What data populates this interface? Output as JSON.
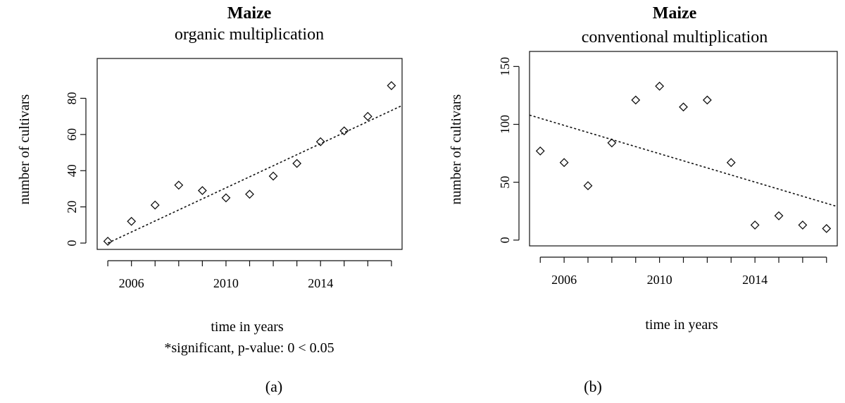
{
  "chart_data": [
    {
      "type": "scatter",
      "title": "Maize",
      "subtitle": "organic multiplication",
      "xlabel": "time in years",
      "ylabel": "number of cultivars",
      "note": "*significant, p-value:  0  < 0.05",
      "caption": "(a)",
      "xlim": [
        2004.55,
        2017.45
      ],
      "ylim": [
        -3.5,
        102
      ],
      "xticks": [
        "2006",
        "2010",
        "2014"
      ],
      "yticks": [
        "0",
        "20",
        "40",
        "60",
        "80"
      ],
      "x": [
        2005,
        2006,
        2007,
        2008,
        2009,
        2010,
        2011,
        2012,
        2013,
        2014,
        2015,
        2016,
        2017
      ],
      "y": [
        1,
        12,
        21,
        32,
        29,
        25,
        27,
        37,
        44,
        56,
        62,
        70,
        87
      ],
      "trend": {
        "x": [
          2005,
          2017.45
        ],
        "y": [
          0,
          76
        ]
      }
    },
    {
      "type": "scatter",
      "title": "Maize",
      "subtitle": "conventional multiplication",
      "xlabel": "time in years",
      "ylabel": "number of cultivars",
      "caption": "(b)",
      "xlim": [
        2004.55,
        2017.45
      ],
      "ylim": [
        -5,
        163
      ],
      "xticks": [
        "2006",
        "2010",
        "2014"
      ],
      "yticks": [
        "0",
        "50",
        "100",
        "150"
      ],
      "x": [
        2005,
        2006,
        2007,
        2008,
        2009,
        2010,
        2011,
        2012,
        2013,
        2014,
        2015,
        2016,
        2017
      ],
      "y": [
        77,
        67,
        47,
        84,
        121,
        133,
        115,
        121,
        67,
        13,
        21,
        13,
        10
      ],
      "trend": {
        "x": [
          2004.55,
          2017.45
        ],
        "y": [
          108,
          29
        ]
      }
    }
  ]
}
